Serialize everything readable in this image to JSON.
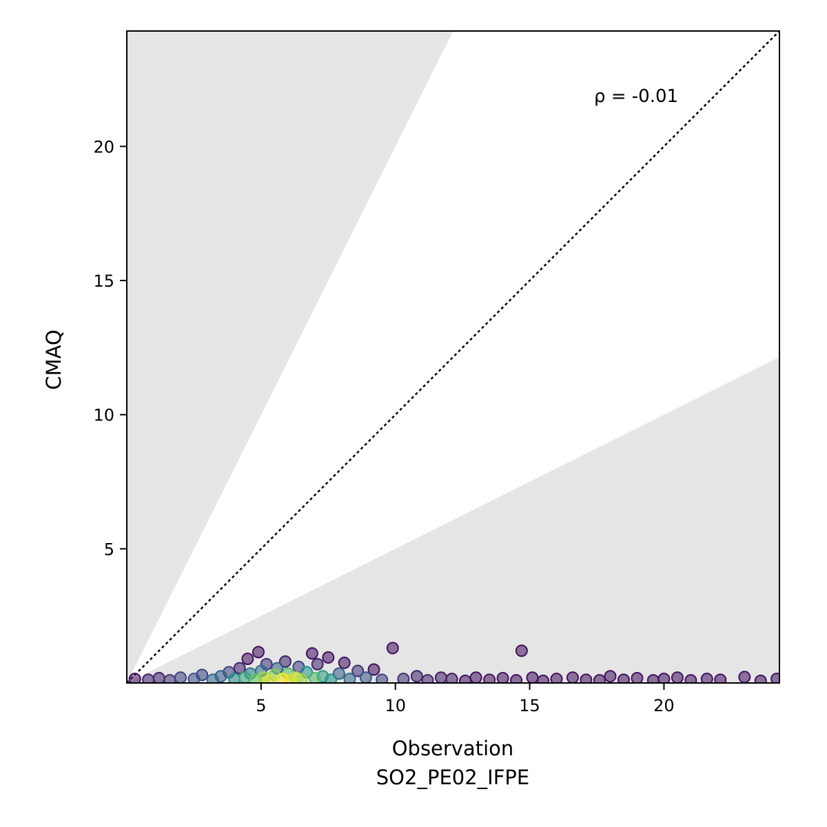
{
  "chart_data": {
    "type": "scatter",
    "xlabel": "Observation",
    "xlabel_sub": "SO2_PE02_IFPE",
    "ylabel": "CMAQ",
    "annotation": "ρ = -0.01",
    "xlim": [
      0,
      24.3
    ],
    "ylim": [
      0,
      24.3
    ],
    "xticks": [
      5,
      10,
      15,
      20
    ],
    "yticks": [
      5,
      10,
      15,
      20
    ],
    "grid": false,
    "identity_line": true,
    "shaded_region": "outside factor-of-2 band (y > 2x and y < x/2)",
    "colormap": "viridis (point density)",
    "colors": {
      "shade": "#e5e5e5",
      "low_density": "#46185a",
      "mid_density": "#2f7f8e",
      "high_density": "#d5e13a"
    },
    "points": [
      [
        0.3,
        0.15,
        0.05
      ],
      [
        0.8,
        0.12,
        0.1
      ],
      [
        1.2,
        0.18,
        0.1
      ],
      [
        1.6,
        0.1,
        0.15
      ],
      [
        2.0,
        0.2,
        0.2
      ],
      [
        2.5,
        0.15,
        0.25
      ],
      [
        2.8,
        0.3,
        0.2
      ],
      [
        3.2,
        0.12,
        0.35
      ],
      [
        3.5,
        0.25,
        0.3
      ],
      [
        3.8,
        0.4,
        0.2
      ],
      [
        4.0,
        0.15,
        0.5
      ],
      [
        4.2,
        0.55,
        0.1
      ],
      [
        4.4,
        0.2,
        0.6
      ],
      [
        4.5,
        0.9,
        0.05
      ],
      [
        4.6,
        0.35,
        0.4
      ],
      [
        4.8,
        0.12,
        0.75
      ],
      [
        4.9,
        1.15,
        0.05
      ],
      [
        5.0,
        0.45,
        0.35
      ],
      [
        5.1,
        0.2,
        0.85
      ],
      [
        5.2,
        0.7,
        0.15
      ],
      [
        5.3,
        0.1,
        0.95
      ],
      [
        5.5,
        0.3,
        0.8
      ],
      [
        5.6,
        0.55,
        0.3
      ],
      [
        5.8,
        0.15,
        1.0
      ],
      [
        5.9,
        0.8,
        0.1
      ],
      [
        6.0,
        0.35,
        0.7
      ],
      [
        6.1,
        0.1,
        0.95
      ],
      [
        6.3,
        0.2,
        0.9
      ],
      [
        6.4,
        0.6,
        0.2
      ],
      [
        6.5,
        0.12,
        0.85
      ],
      [
        6.7,
        0.4,
        0.5
      ],
      [
        6.9,
        1.1,
        0.05
      ],
      [
        7.0,
        0.18,
        0.7
      ],
      [
        7.1,
        0.7,
        0.1
      ],
      [
        7.3,
        0.25,
        0.55
      ],
      [
        7.5,
        0.95,
        0.05
      ],
      [
        7.6,
        0.12,
        0.5
      ],
      [
        7.9,
        0.35,
        0.3
      ],
      [
        8.1,
        0.75,
        0.05
      ],
      [
        8.3,
        0.15,
        0.35
      ],
      [
        8.6,
        0.45,
        0.15
      ],
      [
        8.9,
        0.2,
        0.25
      ],
      [
        9.2,
        0.5,
        0.05
      ],
      [
        9.5,
        0.12,
        0.2
      ],
      [
        9.9,
        1.3,
        0.05
      ],
      [
        10.3,
        0.15,
        0.15
      ],
      [
        10.8,
        0.25,
        0.1
      ],
      [
        11.2,
        0.1,
        0.1
      ],
      [
        11.7,
        0.2,
        0.08
      ],
      [
        12.1,
        0.15,
        0.08
      ],
      [
        12.6,
        0.08,
        0.05
      ],
      [
        13.0,
        0.2,
        0.05
      ],
      [
        13.5,
        0.12,
        0.05
      ],
      [
        14.0,
        0.18,
        0.05
      ],
      [
        14.5,
        0.1,
        0.05
      ],
      [
        14.7,
        1.2,
        0.05
      ],
      [
        15.1,
        0.2,
        0.05
      ],
      [
        15.5,
        0.08,
        0.05
      ],
      [
        16.0,
        0.15,
        0.05
      ],
      [
        16.6,
        0.2,
        0.05
      ],
      [
        17.1,
        0.12,
        0.05
      ],
      [
        17.6,
        0.1,
        0.05
      ],
      [
        18.0,
        0.25,
        0.05
      ],
      [
        18.5,
        0.12,
        0.05
      ],
      [
        19.0,
        0.18,
        0.05
      ],
      [
        19.6,
        0.1,
        0.05
      ],
      [
        20.0,
        0.15,
        0.05
      ],
      [
        20.5,
        0.2,
        0.05
      ],
      [
        21.0,
        0.1,
        0.05
      ],
      [
        21.6,
        0.15,
        0.05
      ],
      [
        22.1,
        0.12,
        0.05
      ],
      [
        23.0,
        0.22,
        0.05
      ],
      [
        23.6,
        0.08,
        0.05
      ],
      [
        24.2,
        0.15,
        0.05
      ]
    ]
  }
}
